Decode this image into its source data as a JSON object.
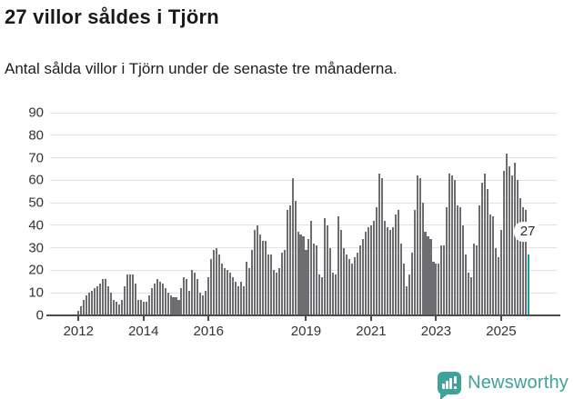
{
  "header": {
    "title": "27 villor såldes i Tjörn",
    "subtitle": "Antal sålda villor i Tjörn under de senaste tre månaderna."
  },
  "chart_data": {
    "type": "bar",
    "title": "27 villor såldes i Tjörn",
    "subtitle": "Antal sålda villor i Tjörn under de senaste tre månaderna.",
    "x_unit": "month",
    "x_start": "2012-01",
    "x_end": "2025-11",
    "values": [
      2,
      4,
      7,
      9,
      10,
      11,
      12,
      13,
      14,
      16,
      16,
      13,
      10,
      7,
      6,
      5,
      7,
      13,
      18,
      18,
      18,
      14,
      7,
      7,
      6,
      6,
      9,
      12,
      14,
      16,
      15,
      14,
      12,
      10,
      9,
      8,
      8,
      7,
      12,
      17,
      16,
      11,
      20,
      19,
      16,
      10,
      9,
      11,
      17,
      25,
      29,
      30,
      27,
      23,
      21,
      20,
      19,
      17,
      15,
      13,
      15,
      13,
      24,
      21,
      29,
      38,
      40,
      36,
      33,
      33,
      27,
      27,
      20,
      19,
      21,
      28,
      29,
      47,
      49,
      61,
      51,
      37,
      36,
      35,
      29,
      34,
      42,
      32,
      31,
      18,
      17,
      43,
      40,
      30,
      19,
      18,
      44,
      38,
      30,
      27,
      25,
      23,
      26,
      28,
      31,
      34,
      37,
      39,
      40,
      42,
      48,
      63,
      61,
      42,
      39,
      38,
      39,
      45,
      47,
      32,
      23,
      13,
      18,
      28,
      47,
      62,
      61,
      50,
      37,
      35,
      34,
      24,
      23,
      23,
      31,
      31,
      48,
      63,
      62,
      60,
      49,
      48,
      40,
      27,
      19,
      17,
      32,
      31,
      49,
      59,
      63,
      56,
      45,
      44,
      30,
      26,
      38,
      64,
      72,
      66,
      62,
      68,
      60,
      52,
      48,
      47,
      27
    ],
    "highlight_last": true,
    "last_value_label": "27",
    "ylim": [
      0,
      90
    ],
    "y_ticks": [
      0,
      10,
      20,
      30,
      40,
      50,
      60,
      70,
      80,
      90
    ],
    "x_tick_labels": [
      "2012",
      "2014",
      "2016",
      "2019",
      "2021",
      "2023",
      "2025"
    ],
    "x_tick_month_index": [
      0,
      24,
      48,
      84,
      108,
      132,
      156
    ],
    "x_padding_months_before": 10,
    "x_padding_months_after": 10,
    "grid": "horizontal",
    "legend": "none",
    "colors": {
      "bar": "#6d6d72",
      "highlight": "#16a0a0",
      "grid": "#e3e3e3",
      "axis": "#4c4c4c",
      "text": "#333333"
    }
  },
  "footer": {
    "brand": "Newsworthy",
    "brand_color": "#3fa29b"
  }
}
